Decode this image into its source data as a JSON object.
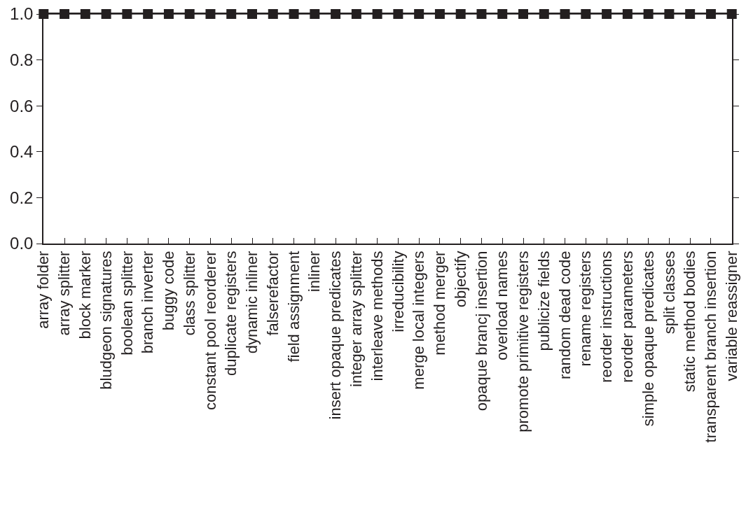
{
  "chart_data": {
    "type": "line",
    "categories": [
      "array folder",
      "array splitter",
      "block marker",
      "bludgeon signatures",
      "boolean splitter",
      "branch inverter",
      "buggy code",
      "class splitter",
      "constant pool reorderer",
      "duplicate registers",
      "dynamic inliner",
      "falserefactor",
      "field assignment",
      "inliner",
      "insert opaque predicates",
      "integer array splitter",
      "interleave methods",
      "irreducibility",
      "merge local integers",
      "method merger",
      "objectify",
      "opaque brancj insertion",
      "overload names",
      "promote primitive registers",
      "publicize fields",
      "random dead code",
      "rename registers",
      "reorder instructions",
      "reorder parameters",
      "simple opaque predicates",
      "split classes",
      "static method bodies",
      "transparent branch insertion",
      "variable reassigner"
    ],
    "series": [
      {
        "color": "#231f20",
        "values": [
          1,
          1,
          1,
          1,
          1,
          1,
          1,
          1,
          1,
          1,
          1,
          1,
          1,
          1,
          1,
          1,
          1,
          1,
          1,
          1,
          1,
          1,
          1,
          1,
          1,
          1,
          1,
          1,
          1,
          1,
          1,
          1,
          1,
          1
        ]
      }
    ],
    "ylim": [
      0,
      1
    ],
    "yticks": [
      {
        "value": 0,
        "label": "0.0"
      },
      {
        "value": 0.2,
        "label": "0.2"
      },
      {
        "value": 0.4,
        "label": "0.4"
      },
      {
        "value": 0.6,
        "label": "0.6"
      },
      {
        "value": 0.8,
        "label": "0.8"
      },
      {
        "value": 1,
        "label": "1.0"
      }
    ],
    "grid": false,
    "marker": "square",
    "line_style": "solid"
  }
}
